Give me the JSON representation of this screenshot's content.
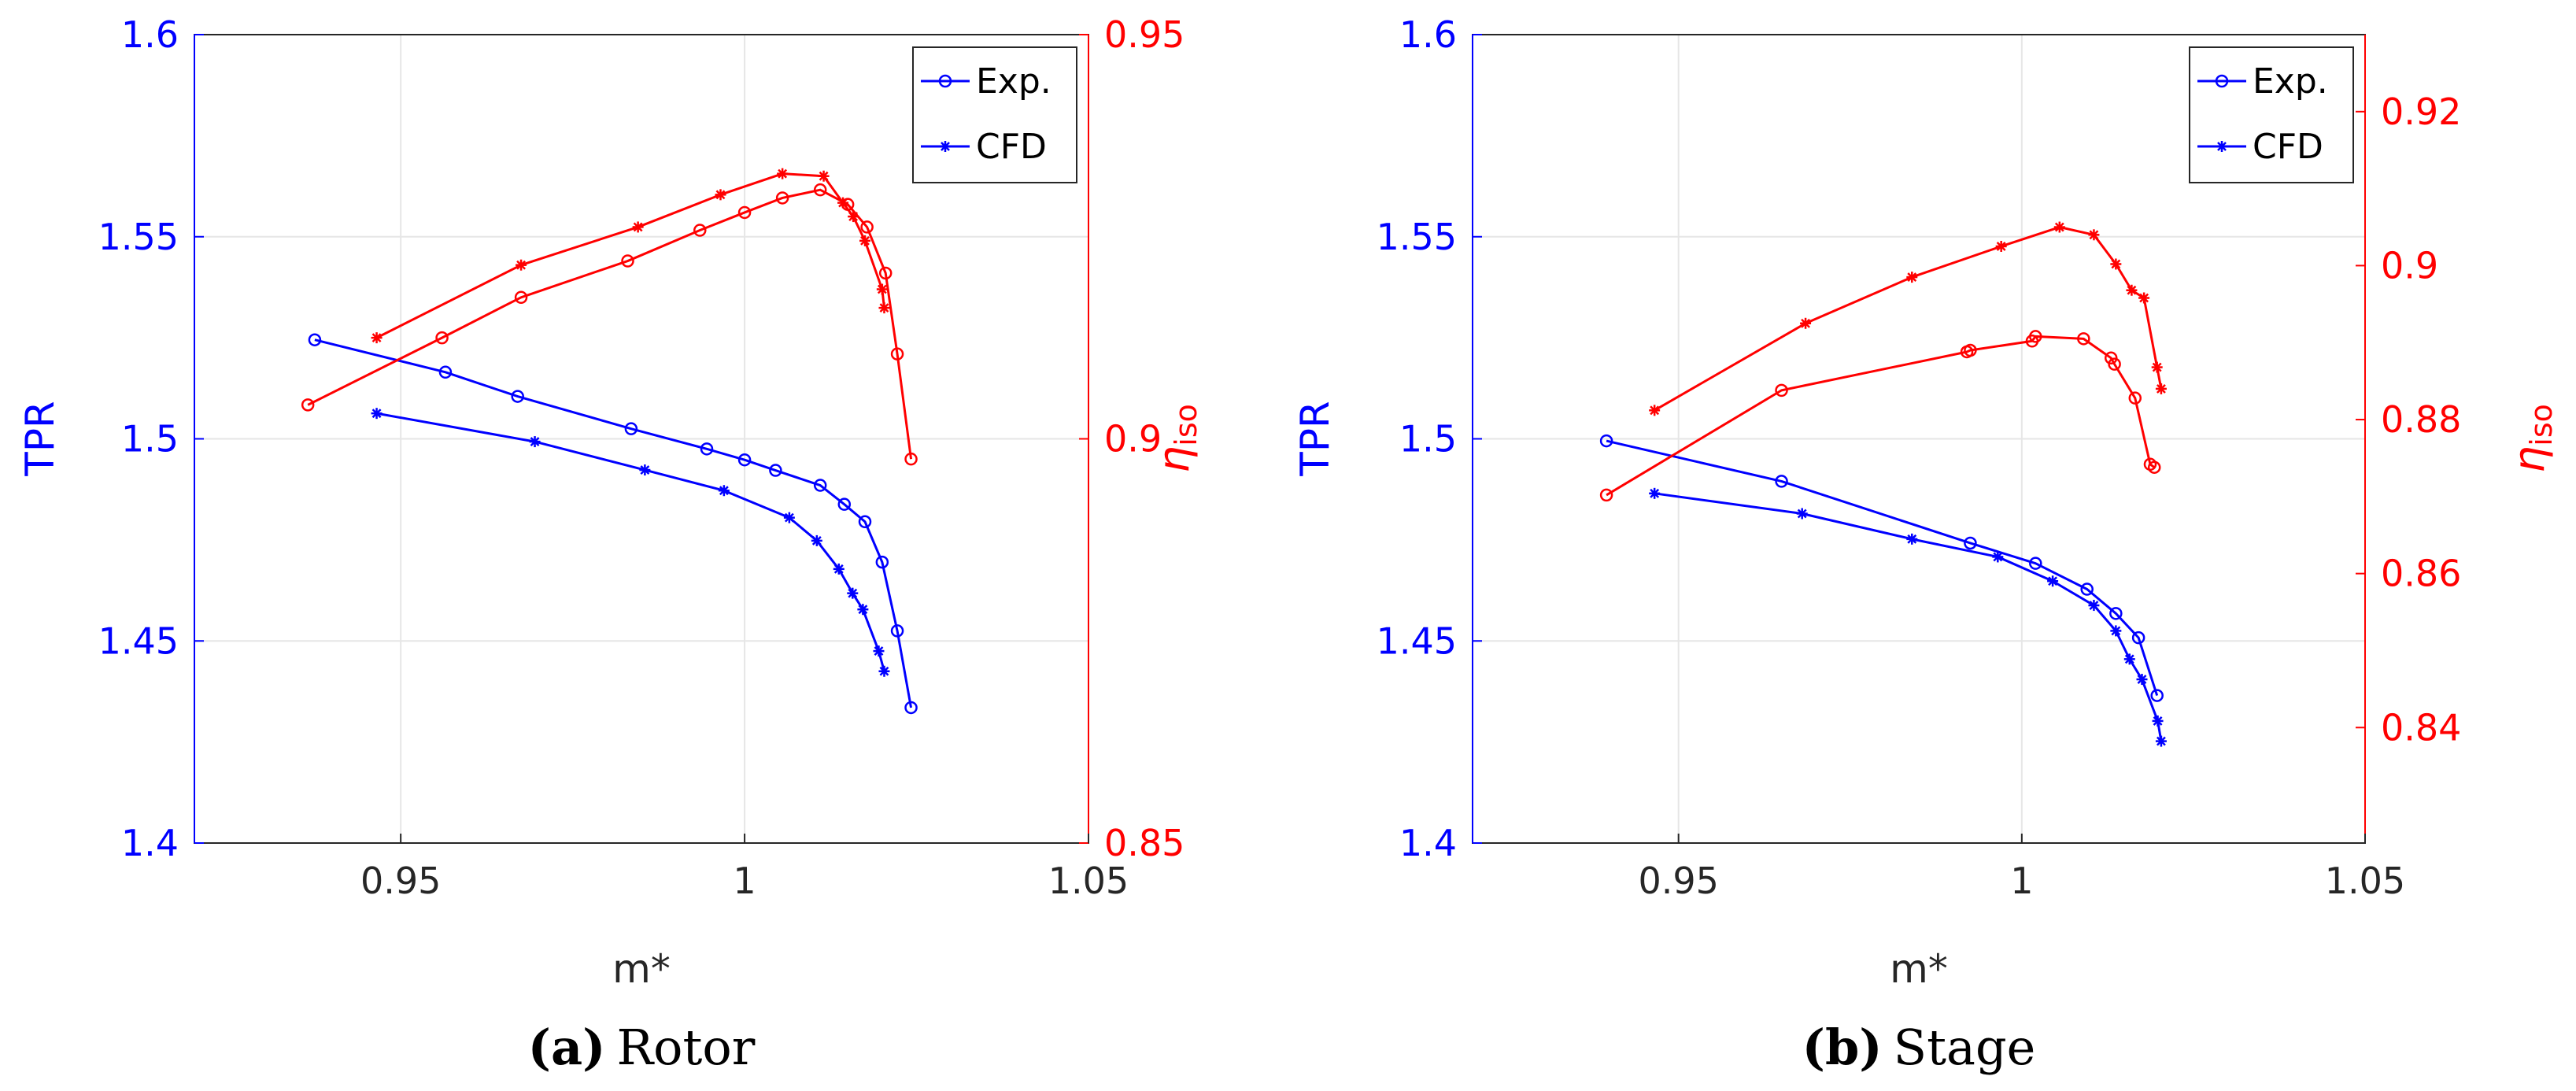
{
  "chart_data": [
    {
      "type": "line",
      "caption": {
        "letter": "(a)",
        "text": "Rotor"
      },
      "xlabel": "m*",
      "ylabel_left": "TPR",
      "ylabel_right": {
        "symbol": "η",
        "subscript": "iso"
      },
      "xlim": [
        0.92,
        1.05
      ],
      "xticks": [
        0.95,
        1,
        1.05
      ],
      "xtick_labels": [
        "0.95",
        "1",
        "1.05"
      ],
      "ylim_left": [
        1.4,
        1.6
      ],
      "yticks_left": [
        1.4,
        1.45,
        1.5,
        1.55,
        1.6
      ],
      "ytick_labels_left": [
        "1.4",
        "1.45",
        "1.5",
        "1.55",
        "1.6"
      ],
      "ylim_right": [
        0.85,
        0.95
      ],
      "yticks_right": [
        0.85,
        0.9,
        0.95
      ],
      "ytick_labels_right": [
        "0.85",
        "0.9",
        "0.95"
      ],
      "grid": true,
      "legend": {
        "placement": "top-right",
        "entries": [
          {
            "label": "Exp.",
            "marker": "circle"
          },
          {
            "label": "CFD",
            "marker": "star"
          }
        ]
      },
      "series": [
        {
          "name": "TPR Exp.",
          "axis": "left",
          "color": "#0000ff",
          "marker": "circle",
          "x": [
            0.9375,
            0.9565,
            0.967,
            0.9835,
            0.9945,
            1.0,
            1.0045,
            1.011,
            1.0145,
            1.0175,
            1.02,
            1.0222,
            1.0242
          ],
          "y": [
            1.5245,
            1.5165,
            1.5105,
            1.5025,
            1.4975,
            1.4948,
            1.4922,
            1.4885,
            1.4838,
            1.4795,
            1.4695,
            1.4525,
            1.4335
          ]
        },
        {
          "name": "TPR CFD",
          "axis": "left",
          "color": "#0000ff",
          "marker": "star",
          "x": [
            0.9465,
            0.9695,
            0.9855,
            0.997,
            1.0065,
            1.0105,
            1.0137,
            1.0157,
            1.0172,
            1.0195,
            1.0203
          ],
          "y": [
            1.5063,
            1.4993,
            1.4923,
            1.4872,
            1.4805,
            1.4748,
            1.4678,
            1.4618,
            1.4578,
            1.4475,
            1.4425
          ]
        },
        {
          "name": "η Exp.",
          "axis": "right",
          "color": "#ff0000",
          "marker": "circle",
          "x": [
            0.9365,
            0.956,
            0.9675,
            0.983,
            0.9935,
            1.0,
            1.0055,
            1.011,
            1.015,
            1.0178,
            1.0205,
            1.0222,
            1.0242
          ],
          "y": [
            0.9042,
            0.9125,
            0.9175,
            0.922,
            0.9258,
            0.928,
            0.9298,
            0.9308,
            0.929,
            0.9262,
            0.9205,
            0.9105,
            0.8975
          ]
        },
        {
          "name": "η CFD",
          "axis": "right",
          "color": "#ff0000",
          "marker": "star",
          "x": [
            0.9465,
            0.9675,
            0.9845,
            0.9965,
            1.0055,
            1.0115,
            1.0143,
            1.0158,
            1.0175,
            1.02,
            1.0203
          ],
          "y": [
            0.9125,
            0.9215,
            0.9262,
            0.9302,
            0.9328,
            0.9325,
            0.9292,
            0.9275,
            0.9245,
            0.9185,
            0.9162
          ]
        }
      ]
    },
    {
      "type": "line",
      "caption": {
        "letter": "(b)",
        "text": "Stage"
      },
      "xlabel": "m*",
      "ylabel_left": "TPR",
      "ylabel_right": {
        "symbol": "η",
        "subscript": "iso"
      },
      "xlim": [
        0.92,
        1.05
      ],
      "xticks": [
        0.95,
        1,
        1.05
      ],
      "xtick_labels": [
        "0.95",
        "1",
        "1.05"
      ],
      "ylim_left": [
        1.4,
        1.6
      ],
      "yticks_left": [
        1.4,
        1.45,
        1.5,
        1.55,
        1.6
      ],
      "ytick_labels_left": [
        "1.4",
        "1.45",
        "1.5",
        "1.55",
        "1.6"
      ],
      "ylim_right": [
        0.825,
        0.93
      ],
      "yticks_right": [
        0.84,
        0.86,
        0.88,
        0.9,
        0.92
      ],
      "ytick_labels_right": [
        "0.84",
        "0.86",
        "0.88",
        "0.9",
        "0.92"
      ],
      "grid": true,
      "legend": {
        "placement": "top-right",
        "entries": [
          {
            "label": "Exp.",
            "marker": "circle"
          },
          {
            "label": "CFD",
            "marker": "star"
          }
        ]
      },
      "series": [
        {
          "name": "TPR Exp.",
          "axis": "left",
          "color": "#0000ff",
          "marker": "circle",
          "x": [
            0.9395,
            0.965,
            0.9925,
            1.002,
            1.0095,
            1.0137,
            1.017,
            1.0197
          ],
          "y": [
            1.4995,
            1.4895,
            1.4742,
            1.4692,
            1.4628,
            1.4568,
            1.4508,
            1.4365
          ]
        },
        {
          "name": "TPR CFD",
          "axis": "left",
          "color": "#0000ff",
          "marker": "star",
          "x": [
            0.9465,
            0.968,
            0.984,
            0.9965,
            1.0045,
            1.0105,
            1.0137,
            1.0157,
            1.0175,
            1.0198,
            1.0203
          ],
          "y": [
            1.4865,
            1.4815,
            1.4752,
            1.4708,
            1.4648,
            1.4588,
            1.4525,
            1.4455,
            1.4405,
            1.4302,
            1.4252
          ]
        },
        {
          "name": "η Exp.",
          "axis": "right",
          "color": "#ff0000",
          "marker": "circle",
          "x": [
            0.9395,
            0.965,
            0.992,
            0.9925,
            1.0015,
            1.002,
            1.009,
            1.013,
            1.0135,
            1.0165,
            1.0187,
            1.0193
          ],
          "y": [
            0.8702,
            0.8838,
            0.8888,
            0.889,
            0.8902,
            0.8908,
            0.8905,
            0.888,
            0.8872,
            0.8828,
            0.8742,
            0.8738
          ]
        },
        {
          "name": "η CFD",
          "axis": "right",
          "color": "#ff0000",
          "marker": "star",
          "x": [
            0.9465,
            0.9685,
            0.984,
            0.997,
            1.0055,
            1.0105,
            1.0137,
            1.016,
            1.0178,
            1.0197,
            1.0203
          ],
          "y": [
            0.8812,
            0.8925,
            0.8985,
            0.9025,
            0.905,
            0.904,
            0.9002,
            0.8968,
            0.8958,
            0.8868,
            0.884
          ]
        }
      ]
    }
  ]
}
